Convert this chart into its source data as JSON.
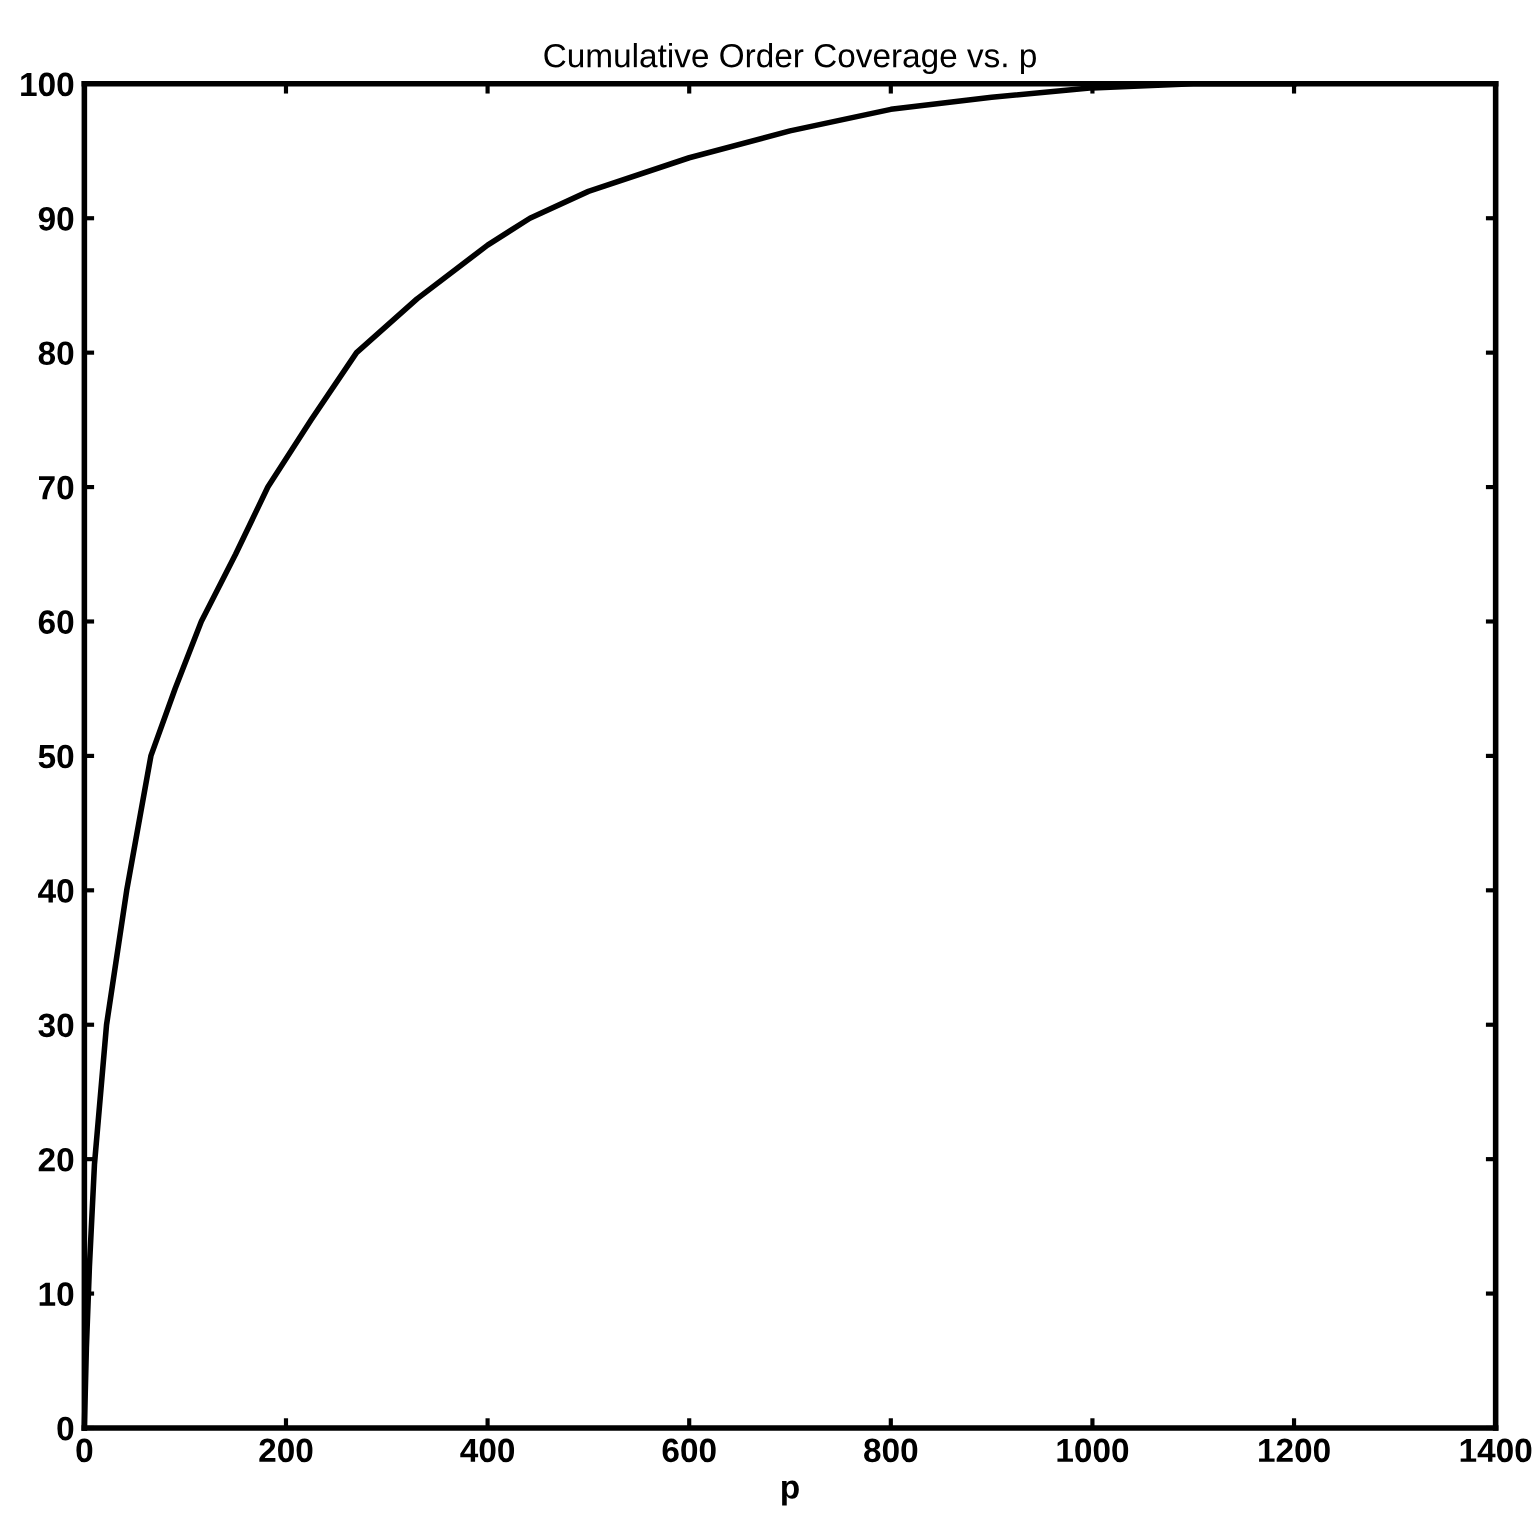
{
  "chart_data": {
    "type": "line",
    "title": "Cumulative Order Coverage vs. p",
    "xlabel": "p",
    "series": [
      {
        "color": "#000000",
        "x": [
          0,
          2,
          5,
          10,
          22,
          42,
          66,
          90,
          116,
          150,
          182,
          225,
          270,
          330,
          400,
          442,
          500,
          600,
          700,
          800,
          900,
          1000,
          1100,
          1200
        ],
        "values": [
          0,
          6,
          12,
          19.6,
          30,
          40,
          50,
          55,
          60,
          65,
          70,
          75,
          80,
          84,
          88,
          90,
          92,
          94.5,
          96.5,
          98.1,
          99,
          99.7,
          100,
          100
        ]
      }
    ],
    "xlim": [
      0,
      1400
    ],
    "ylim": [
      0,
      100
    ],
    "xticks": [
      0,
      200,
      400,
      600,
      800,
      1000,
      1200,
      1400
    ],
    "yticks": [
      0,
      10,
      20,
      30,
      40,
      50,
      60,
      70,
      80,
      90,
      100
    ],
    "grid": false,
    "legend": false,
    "marker": "none",
    "line_style": "solid"
  }
}
